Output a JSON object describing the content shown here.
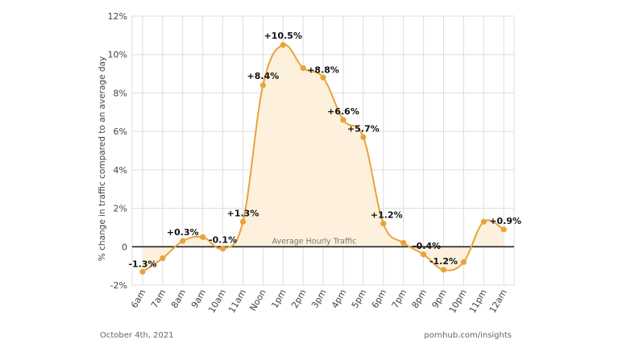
{
  "chart_data": {
    "type": "line",
    "title": "",
    "xlabel": "",
    "ylabel": "% change in traffic compared to an average day",
    "ylim": [
      -2,
      12
    ],
    "yticks": [
      {
        "value": -2,
        "label": "-2%"
      },
      {
        "value": 0,
        "label": "0"
      },
      {
        "value": 2,
        "label": "2%"
      },
      {
        "value": 4,
        "label": "4%"
      },
      {
        "value": 6,
        "label": "6%"
      },
      {
        "value": 8,
        "label": "8%"
      },
      {
        "value": 10,
        "label": "10%"
      },
      {
        "value": 12,
        "label": "12%"
      }
    ],
    "grid": true,
    "baseline_label": "Average Hourly Traffic",
    "categories": [
      "6am",
      "7am",
      "8am",
      "9am",
      "10am",
      "11am",
      "Noon",
      "1pm",
      "2pm",
      "3pm",
      "4pm",
      "5pm",
      "6pm",
      "7pm",
      "8pm",
      "9pm",
      "10pm",
      "11pm",
      "12am"
    ],
    "series": [
      {
        "values": [
          -1.3,
          -0.6,
          0.3,
          0.5,
          -0.1,
          1.3,
          8.4,
          10.5,
          9.3,
          8.8,
          6.6,
          5.7,
          1.2,
          0.2,
          -0.4,
          -1.2,
          -0.8,
          1.3,
          0.9
        ],
        "data_labels": [
          "-1.3%",
          "",
          "+0.3%",
          "",
          "-0.1%",
          "+1.3%",
          "+8.4%",
          "+10.5%",
          "",
          "+8.8%",
          "+6.6%",
          "+5.7%",
          "+1.2%",
          "",
          "-0.4%",
          "-1.2%",
          "",
          "",
          "+0.9%"
        ]
      }
    ],
    "colors": {
      "line": "#e8a33a",
      "fill": "#fdf1de",
      "grid": "#dddddd",
      "axis": "#222222",
      "label": "#111111",
      "tick": "#444444"
    }
  },
  "footer": {
    "date": "October 4th, 2021",
    "source": "pornhub.com/insights"
  }
}
